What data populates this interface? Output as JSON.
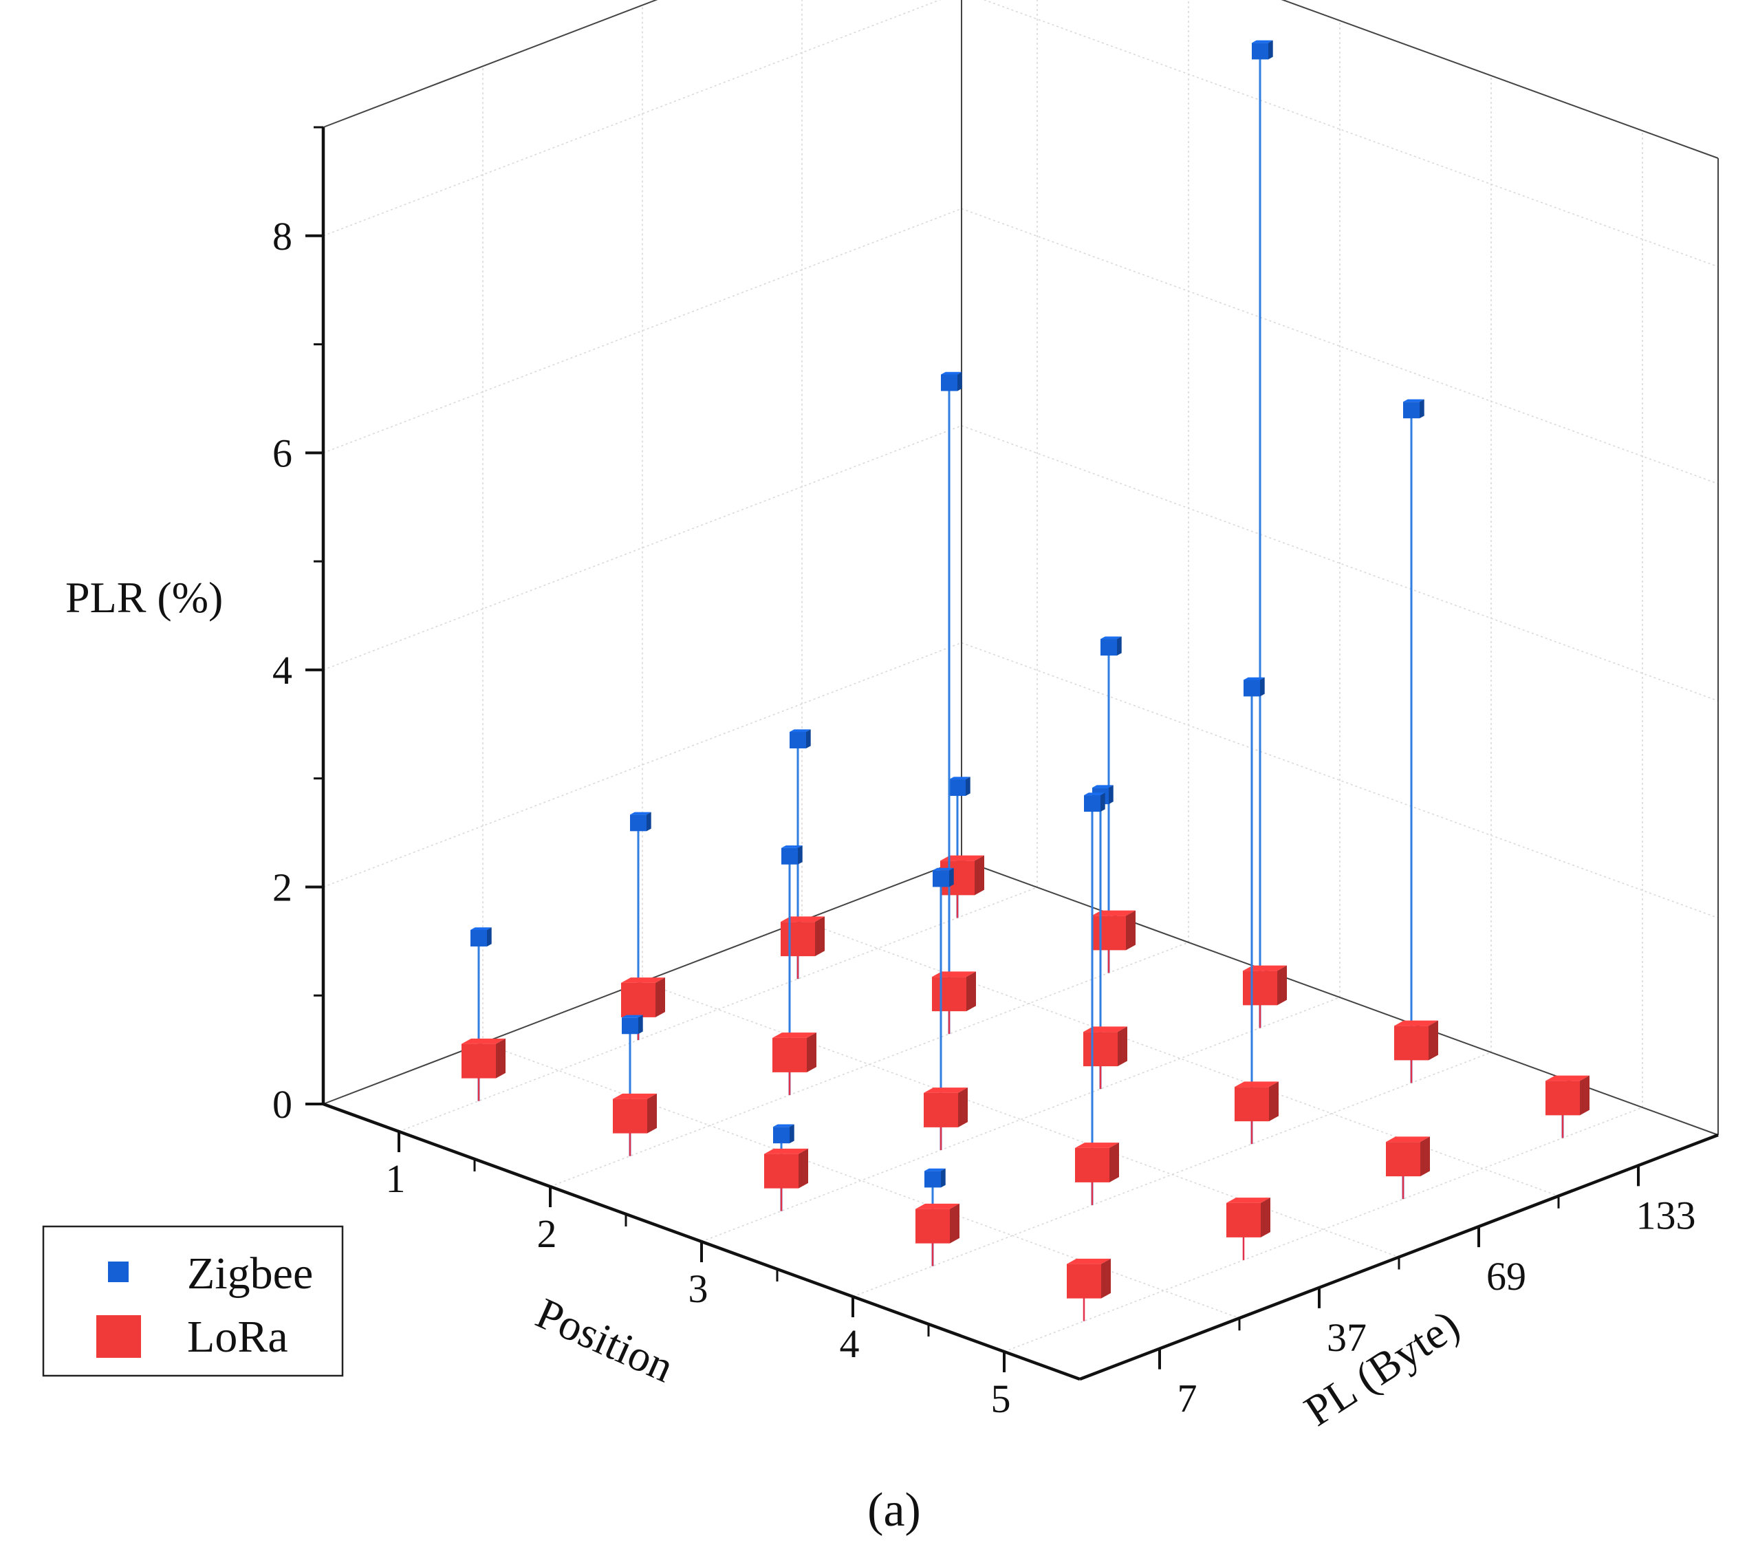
{
  "chart_data": {
    "type": "scatter3d",
    "x_axis": {
      "label": "Position",
      "ticks": [
        "1",
        "2",
        "3",
        "4",
        "5"
      ]
    },
    "y_axis": {
      "label": "PL (Byte)",
      "ticks": [
        "7",
        "37",
        "69",
        "133"
      ]
    },
    "z_axis": {
      "label": "PLR (%)",
      "ticks": [
        "0",
        "2",
        "4",
        "6",
        "8"
      ],
      "range": [
        0,
        9
      ]
    },
    "legend": {
      "position": "bottom-left",
      "entries": [
        "Zigbee",
        "LoRa"
      ]
    },
    "caption": "(a)",
    "series": [
      {
        "name": "Zigbee",
        "color": "#1560d4",
        "stem_color": "#2f7ee0",
        "points": [
          {
            "position": 1,
            "pl": 7,
            "plr": 1.5
          },
          {
            "position": 1,
            "pl": 37,
            "plr": 2.0
          },
          {
            "position": 1,
            "pl": 69,
            "plr": 2.2
          },
          {
            "position": 1,
            "pl": 133,
            "plr": 1.2
          },
          {
            "position": 2,
            "pl": 7,
            "plr": 1.2
          },
          {
            "position": 2,
            "pl": 37,
            "plr": 2.2
          },
          {
            "position": 2,
            "pl": 69,
            "plr": 6.0
          },
          {
            "position": 2,
            "pl": 133,
            "plr": 3.0
          },
          {
            "position": 3,
            "pl": 7,
            "plr": 0.7
          },
          {
            "position": 3,
            "pl": 37,
            "plr": 2.5
          },
          {
            "position": 3,
            "pl": 69,
            "plr": 2.7
          },
          {
            "position": 3,
            "pl": 133,
            "plr": 9.0
          },
          {
            "position": 4,
            "pl": 7,
            "plr": 0.8
          },
          {
            "position": 4,
            "pl": 37,
            "plr": 3.7
          },
          {
            "position": 4,
            "pl": 69,
            "plr": 4.2
          },
          {
            "position": 4,
            "pl": 133,
            "plr": 6.2
          },
          {
            "position": 5,
            "pl": 69,
            "plr": 0.4
          },
          {
            "position": 5,
            "pl": 133,
            "plr": 0.4
          }
        ]
      },
      {
        "name": "LoRa",
        "color": "#f03a3a",
        "stem_color": "#e0304a",
        "points": [
          {
            "position": 1,
            "pl": 7,
            "plr": 0
          },
          {
            "position": 1,
            "pl": 37,
            "plr": 0
          },
          {
            "position": 1,
            "pl": 69,
            "plr": 0
          },
          {
            "position": 1,
            "pl": 133,
            "plr": 0
          },
          {
            "position": 2,
            "pl": 7,
            "plr": 0
          },
          {
            "position": 2,
            "pl": 37,
            "plr": 0
          },
          {
            "position": 2,
            "pl": 69,
            "plr": 0
          },
          {
            "position": 2,
            "pl": 133,
            "plr": 0
          },
          {
            "position": 3,
            "pl": 7,
            "plr": 0
          },
          {
            "position": 3,
            "pl": 37,
            "plr": 0
          },
          {
            "position": 3,
            "pl": 69,
            "plr": 0
          },
          {
            "position": 3,
            "pl": 133,
            "plr": 0
          },
          {
            "position": 4,
            "pl": 7,
            "plr": 0
          },
          {
            "position": 4,
            "pl": 37,
            "plr": 0
          },
          {
            "position": 4,
            "pl": 69,
            "plr": 0
          },
          {
            "position": 4,
            "pl": 133,
            "plr": 0
          },
          {
            "position": 5,
            "pl": 7,
            "plr": 0
          },
          {
            "position": 5,
            "pl": 37,
            "plr": 0
          },
          {
            "position": 5,
            "pl": 69,
            "plr": 0
          },
          {
            "position": 5,
            "pl": 133,
            "plr": 0
          }
        ]
      }
    ]
  }
}
